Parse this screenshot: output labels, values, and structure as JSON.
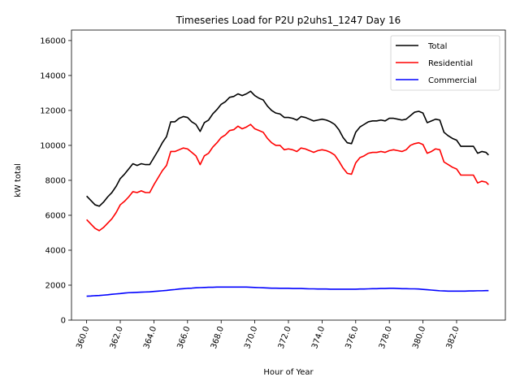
{
  "chart_data": {
    "type": "line",
    "title": "Timeseries Load for P2U p2uhs1_1247  Day 16",
    "xlabel": "Hour of Year",
    "ylabel": "kW total",
    "xlim": [
      359.1,
      384.9
    ],
    "ylim": [
      0,
      16600
    ],
    "x_ticks": [
      360,
      362,
      364,
      366,
      368,
      370,
      372,
      374,
      376,
      378,
      380,
      382
    ],
    "x_tick_labels": [
      "360.0",
      "362.0",
      "364.0",
      "366.0",
      "368.0",
      "370.0",
      "372.0",
      "374.0",
      "376.0",
      "378.0",
      "380.0",
      "382.0"
    ],
    "y_ticks": [
      0,
      2000,
      4000,
      6000,
      8000,
      10000,
      12000,
      14000,
      16000
    ],
    "y_tick_labels": [
      "0",
      "2000",
      "4000",
      "6000",
      "8000",
      "10000",
      "12000",
      "14000",
      "16000"
    ],
    "legend_position": "top-right",
    "x": [
      360.0,
      360.25,
      360.5,
      360.75,
      361.0,
      361.25,
      361.5,
      361.75,
      362.0,
      362.25,
      362.5,
      362.75,
      363.0,
      363.25,
      363.5,
      363.75,
      364.0,
      364.25,
      364.5,
      364.75,
      365.0,
      365.25,
      365.5,
      365.75,
      366.0,
      366.25,
      366.5,
      366.75,
      367.0,
      367.25,
      367.5,
      367.75,
      368.0,
      368.25,
      368.5,
      368.75,
      369.0,
      369.25,
      369.5,
      369.75,
      370.0,
      370.25,
      370.5,
      370.75,
      371.0,
      371.25,
      371.5,
      371.75,
      372.0,
      372.25,
      372.5,
      372.75,
      373.0,
      373.25,
      373.5,
      373.75,
      374.0,
      374.25,
      374.5,
      374.75,
      375.0,
      375.25,
      375.5,
      375.75,
      376.0,
      376.25,
      376.5,
      376.75,
      377.0,
      377.25,
      377.5,
      377.75,
      378.0,
      378.25,
      378.5,
      378.75,
      379.0,
      379.25,
      379.5,
      379.75,
      380.0,
      380.25,
      380.5,
      380.75,
      381.0,
      381.25,
      381.5,
      381.75,
      382.0,
      382.25,
      382.5,
      382.75,
      383.0,
      383.25,
      383.5,
      383.75
    ],
    "series": [
      {
        "name": "Total",
        "color": "#000000",
        "values": [
          7100,
          6850,
          6600,
          6520,
          6750,
          7050,
          7300,
          7650,
          8100,
          8350,
          8650,
          8950,
          8850,
          8950,
          8900,
          8900,
          9300,
          9700,
          10150,
          10500,
          11350,
          11350,
          11550,
          11650,
          11600,
          11350,
          11200,
          10800,
          11300,
          11450,
          11800,
          12050,
          12350,
          12500,
          12750,
          12800,
          12950,
          12850,
          12950,
          13100,
          12850,
          12700,
          12600,
          12250,
          12000,
          11850,
          11800,
          11600,
          11600,
          11550,
          11450,
          11650,
          11600,
          11500,
          11400,
          11450,
          11500,
          11450,
          11350,
          11200,
          10900,
          10450,
          10150,
          10100,
          10750,
          11050,
          11200,
          11350,
          11400,
          11400,
          11450,
          11400,
          11550,
          11550,
          11500,
          11450,
          11500,
          11700,
          11900,
          11950,
          11850,
          11300,
          11400,
          11500,
          11450,
          10750,
          10550,
          10400,
          10300,
          9950,
          9950,
          9950,
          9950,
          9550,
          9650,
          9600
        ],
        "end_value": 9450
      },
      {
        "name": "Residential",
        "color": "#ff0000",
        "values": [
          5750,
          5500,
          5250,
          5120,
          5300,
          5550,
          5800,
          6150,
          6600,
          6800,
          7050,
          7350,
          7300,
          7400,
          7300,
          7300,
          7750,
          8150,
          8550,
          8850,
          9650,
          9650,
          9750,
          9850,
          9800,
          9600,
          9400,
          8900,
          9400,
          9550,
          9900,
          10150,
          10450,
          10600,
          10850,
          10900,
          11100,
          10950,
          11050,
          11200,
          10950,
          10850,
          10750,
          10400,
          10150,
          10000,
          10000,
          9750,
          9800,
          9750,
          9650,
          9850,
          9800,
          9700,
          9600,
          9700,
          9750,
          9700,
          9600,
          9450,
          9100,
          8700,
          8400,
          8350,
          9000,
          9300,
          9400,
          9550,
          9600,
          9600,
          9650,
          9600,
          9700,
          9750,
          9700,
          9650,
          9750,
          10000,
          10100,
          10150,
          10050,
          9550,
          9650,
          9800,
          9750,
          9050,
          8900,
          8750,
          8650,
          8300,
          8300,
          8300,
          8300,
          7850,
          7950,
          7900
        ],
        "end_value": 7750
      },
      {
        "name": "Commercial",
        "color": "#0000ff",
        "values": [
          1370,
          1380,
          1400,
          1410,
          1430,
          1450,
          1480,
          1500,
          1520,
          1550,
          1570,
          1580,
          1590,
          1600,
          1610,
          1620,
          1640,
          1660,
          1680,
          1700,
          1730,
          1750,
          1780,
          1800,
          1820,
          1830,
          1850,
          1860,
          1870,
          1880,
          1880,
          1890,
          1890,
          1890,
          1890,
          1890,
          1890,
          1890,
          1890,
          1880,
          1870,
          1860,
          1850,
          1840,
          1830,
          1830,
          1820,
          1820,
          1820,
          1810,
          1810,
          1810,
          1800,
          1790,
          1790,
          1780,
          1780,
          1780,
          1770,
          1770,
          1770,
          1770,
          1770,
          1770,
          1770,
          1780,
          1780,
          1790,
          1800,
          1800,
          1810,
          1810,
          1820,
          1820,
          1810,
          1800,
          1800,
          1790,
          1790,
          1780,
          1760,
          1740,
          1720,
          1700,
          1680,
          1670,
          1660,
          1660,
          1660,
          1660,
          1660,
          1670,
          1670,
          1680,
          1680,
          1690
        ],
        "end_value": 1690
      }
    ]
  }
}
